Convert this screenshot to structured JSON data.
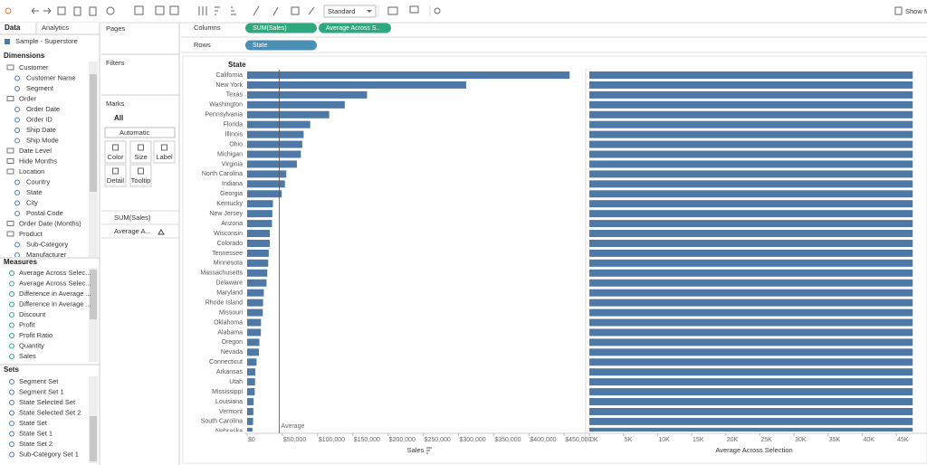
{
  "toolbar": {
    "fit": "Standard",
    "show_me": "Show M"
  },
  "data_pane": {
    "tabs": [
      "Data",
      "Analytics"
    ],
    "source": "Sample - Superstore",
    "dimensions": {
      "title": "Dimensions",
      "items": [
        {
          "label": "Customer",
          "children": [
            "Customer Name",
            "Segment"
          ]
        },
        {
          "label": "Order",
          "children": [
            "Order Date",
            "Order ID",
            "Ship Date",
            "Ship Mode"
          ]
        },
        {
          "label": "Date Level"
        },
        {
          "label": "Hide Months"
        },
        {
          "label": "Location",
          "children": [
            "Country",
            "State",
            "City",
            "Postal Code"
          ]
        },
        {
          "label": "Order Date (Months)"
        },
        {
          "label": "Product",
          "children": [
            "Sub-Category",
            "Manufacturer"
          ]
        }
      ]
    },
    "measures": {
      "title": "Measures",
      "items": [
        "Average Across Selec...",
        "Average Across Selec...",
        "Difference in Average ...",
        "Difference in Average ...",
        "Discount",
        "Profit",
        "Profit Ratio",
        "Quantity",
        "Sales"
      ]
    },
    "sets": {
      "title": "Sets",
      "items": [
        "Segment Set",
        "Segment Set 1",
        "State Selected Set",
        "State Selected Set 2",
        "State Set",
        "State Set 1",
        "State Set 2",
        "Sub-Category Set 1"
      ]
    }
  },
  "cards": {
    "pages": "Pages",
    "filters": "Filters",
    "marks": {
      "title": "Marks",
      "all": "All",
      "mark_type": "Automatic",
      "buttons": [
        "Color",
        "Size",
        "Label",
        "Detail",
        "Tooltip"
      ],
      "fields": [
        "SUM(Sales)",
        "Average A..."
      ]
    }
  },
  "shelves": {
    "columns": {
      "label": "Columns",
      "pills": [
        "SUM(Sales)",
        "Average Across S.."
      ]
    },
    "rows": {
      "label": "Rows",
      "pills": [
        "State"
      ]
    }
  },
  "chart_data": {
    "type": "bar",
    "orientation": "horizontal",
    "row_header": "State",
    "categories": [
      "California",
      "New York",
      "Texas",
      "Washington",
      "Pennsylvania",
      "Florida",
      "Illinois",
      "Ohio",
      "Michigan",
      "Virginia",
      "North Carolina",
      "Indiana",
      "Georgia",
      "Kentucky",
      "New Jersey",
      "Arizona",
      "Wisconsin",
      "Colorado",
      "Tennessee",
      "Minnesota",
      "Massachusetts",
      "Delaware",
      "Maryland",
      "Rhode Island",
      "Missouri",
      "Oklahoma",
      "Alabama",
      "Oregon",
      "Nevada",
      "Connecticut",
      "Arkansas",
      "Utah",
      "Mississippi",
      "Louisiana",
      "Vermont",
      "South Carolina",
      "Nebraska"
    ],
    "panels": [
      {
        "x_label": "Sales",
        "color": "#4e79a7",
        "xlim": [
          0,
          478000
        ],
        "xticks": [
          {
            "value": 0,
            "label": "$0"
          },
          {
            "value": 50000,
            "label": "$50,000"
          },
          {
            "value": 100000,
            "label": "$100,000"
          },
          {
            "value": 150000,
            "label": "$150,000"
          },
          {
            "value": 200000,
            "label": "$200,000"
          },
          {
            "value": 250000,
            "label": "$250,000"
          },
          {
            "value": 300000,
            "label": "$300,000"
          },
          {
            "value": 350000,
            "label": "$350,000"
          },
          {
            "value": 400000,
            "label": "$400,000"
          },
          {
            "value": 450000,
            "label": "$450,000"
          }
        ],
        "values": [
          457700,
          310900,
          170200,
          138600,
          116500,
          89500,
          80200,
          78300,
          76300,
          70600,
          55600,
          53600,
          49100,
          36600,
          35800,
          35300,
          32100,
          32100,
          30700,
          29900,
          28600,
          27500,
          23700,
          22600,
          22200,
          19700,
          19500,
          17400,
          16700,
          13400,
          11700,
          11200,
          10800,
          9200,
          8900,
          8500,
          7500
        ],
        "reference_line": {
          "label": "Average",
          "value": 45500
        }
      },
      {
        "x_label": "Average Across Selection",
        "color": "#4e79a7",
        "xlim": [
          0,
          48.3
        ],
        "xticks": [
          {
            "value": 0,
            "label": "0K"
          },
          {
            "value": 5,
            "label": "5K"
          },
          {
            "value": 10,
            "label": "10K"
          },
          {
            "value": 15,
            "label": "15K"
          },
          {
            "value": 20,
            "label": "20K"
          },
          {
            "value": 25,
            "label": "25K"
          },
          {
            "value": 30,
            "label": "30K"
          },
          {
            "value": 35,
            "label": "35K"
          },
          {
            "value": 40,
            "label": "40K"
          },
          {
            "value": 45,
            "label": "45K"
          }
        ],
        "values": [
          47.4,
          47.4,
          47.4,
          47.4,
          47.4,
          47.4,
          47.4,
          47.4,
          47.4,
          47.4,
          47.4,
          47.4,
          47.4,
          47.4,
          47.4,
          47.4,
          47.4,
          47.4,
          47.4,
          47.4,
          47.4,
          47.4,
          47.4,
          47.4,
          47.4,
          47.4,
          47.4,
          47.4,
          47.4,
          47.4,
          47.4,
          47.4,
          47.4,
          47.4,
          47.4,
          47.4,
          47.4
        ]
      }
    ]
  }
}
